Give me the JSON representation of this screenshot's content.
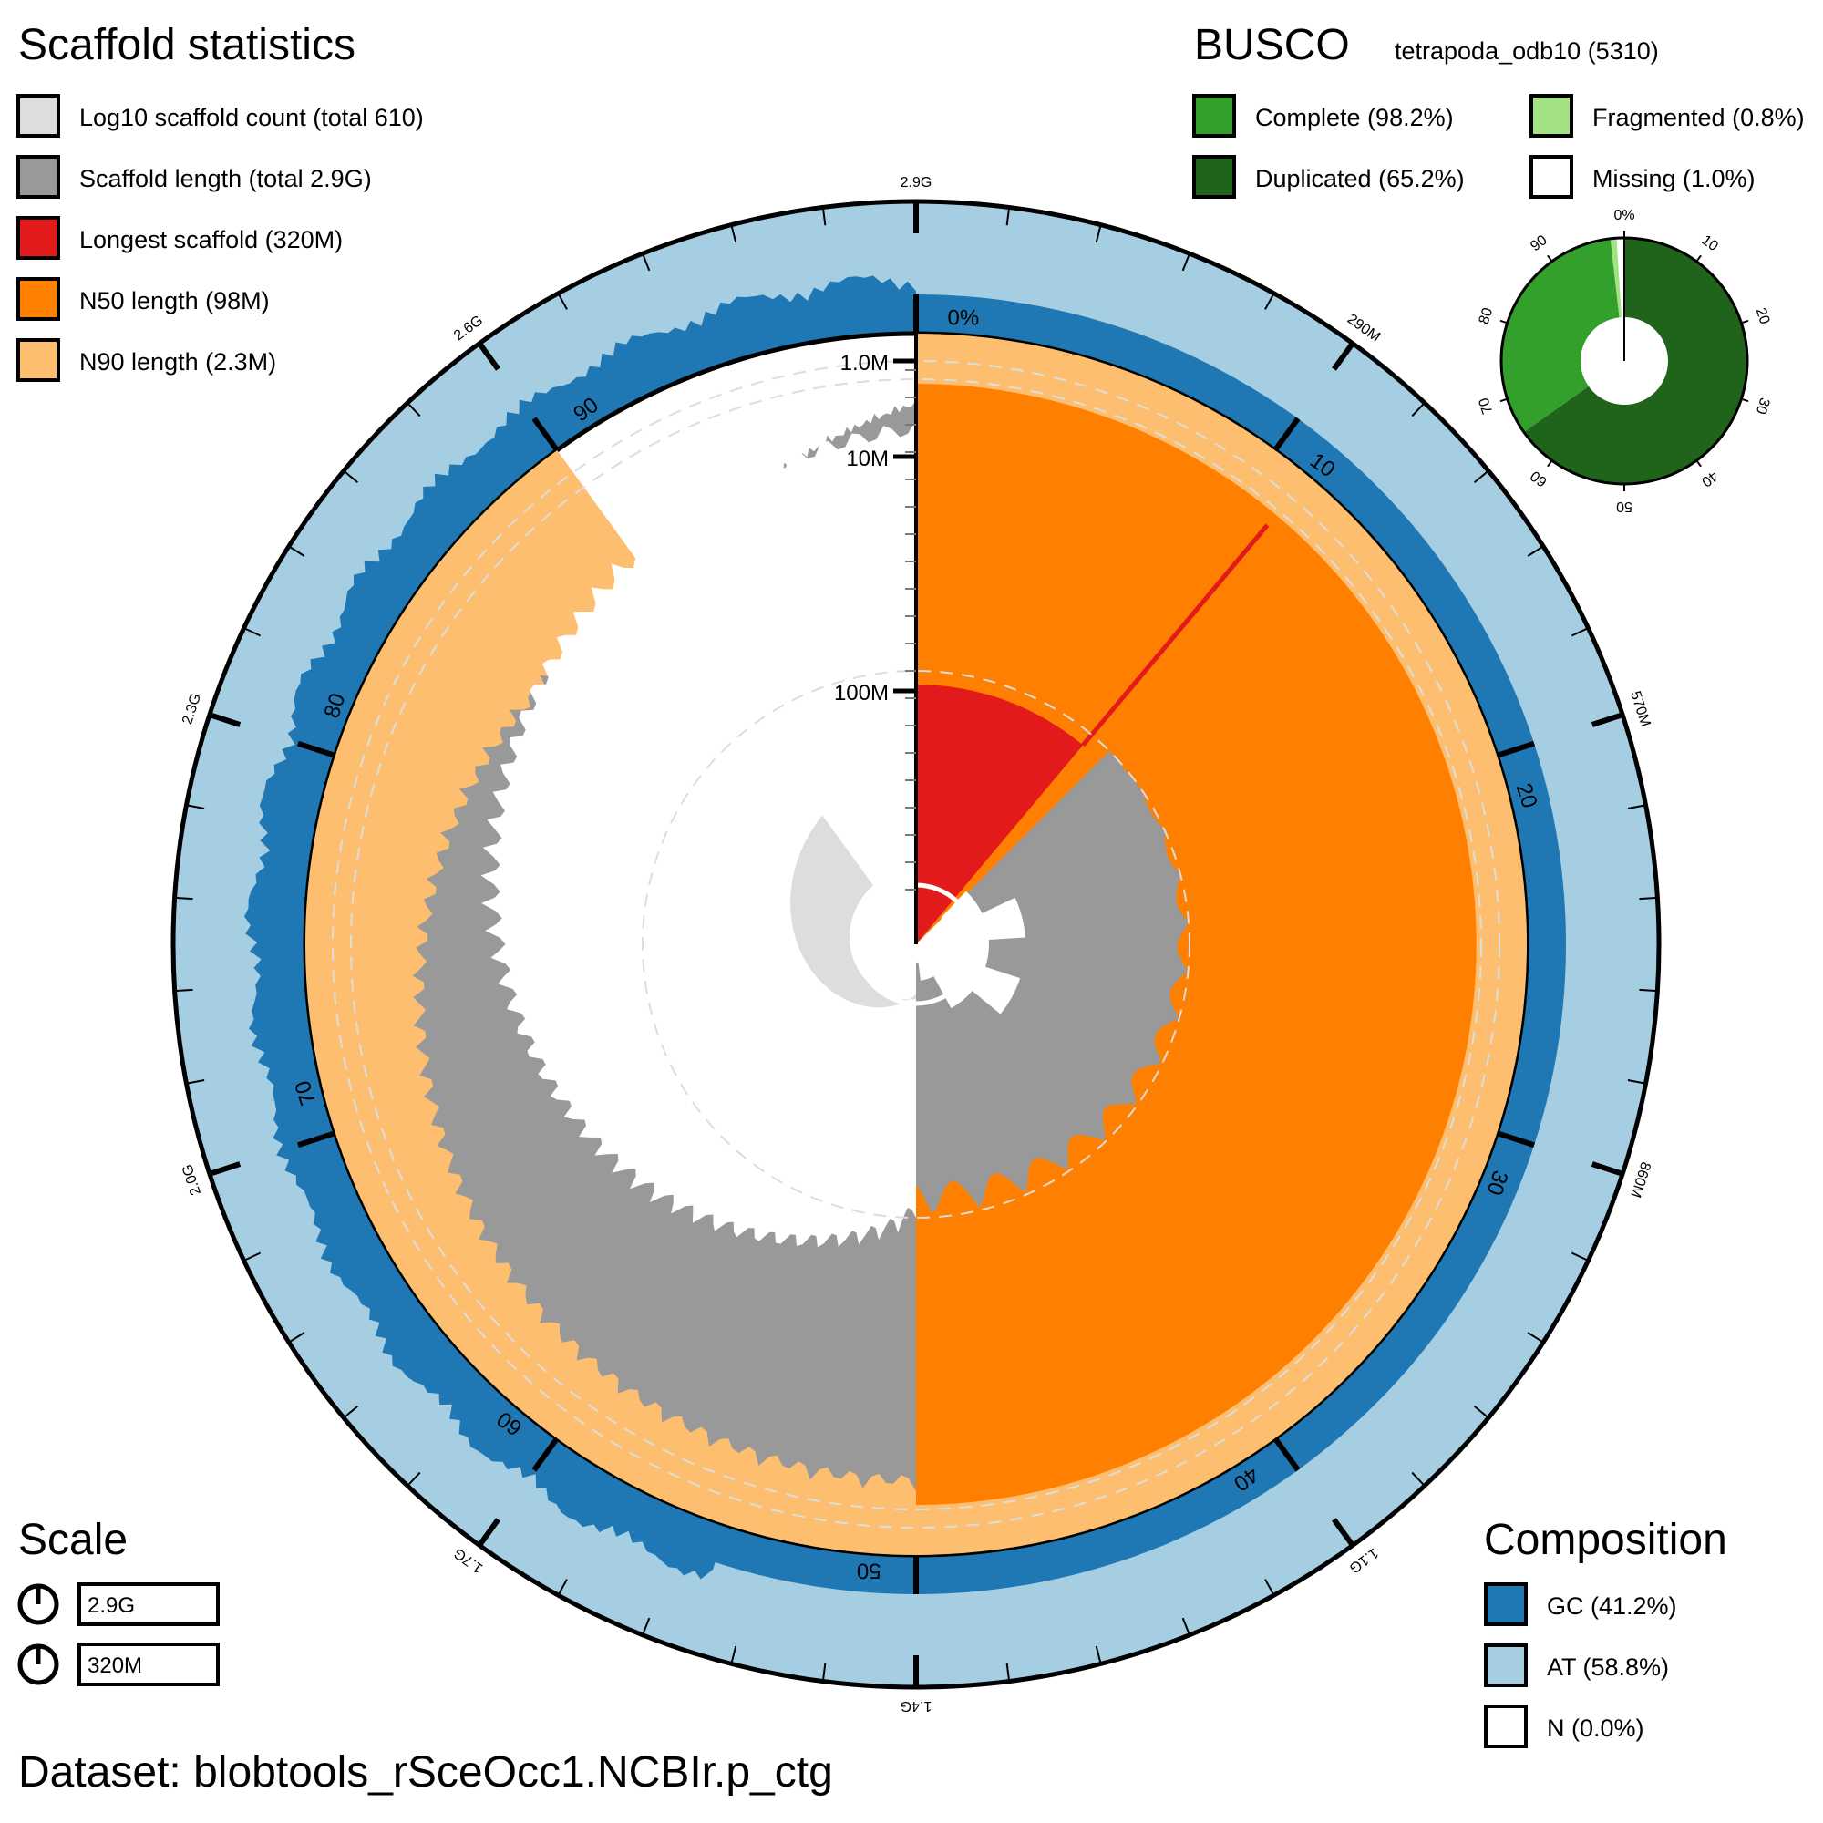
{
  "scaffold_stats": {
    "title": "Scaffold statistics",
    "legend": [
      {
        "label": "Log10 scaffold count (total 610)",
        "color": "#dddddd"
      },
      {
        "label": "Scaffold length (total 2.9G)",
        "color": "#999999"
      },
      {
        "label": "Longest scaffold (320M)",
        "color": "#e31a1c"
      },
      {
        "label": "N50 length (98M)",
        "color": "#ff7f00"
      },
      {
        "label": "N90 length (2.3M)",
        "color": "#fdbf6f"
      }
    ]
  },
  "busco": {
    "title": "BUSCO",
    "lineage": "tetrapoda_odb10 (5310)",
    "legend": [
      {
        "label": "Complete (98.2%)",
        "color": "#33a02c"
      },
      {
        "label": "Fragmented (0.8%)",
        "color": "#a3e283"
      },
      {
        "label": "Duplicated (65.2%)",
        "color": "#20641c"
      },
      {
        "label": "Missing (1.0%)",
        "color": "#ffffff"
      }
    ],
    "ticks": [
      "0%",
      "10",
      "20",
      "30",
      "40",
      "50",
      "60",
      "70",
      "80",
      "90"
    ]
  },
  "scale": {
    "title": "Scale",
    "items": [
      "2.9G",
      "320M"
    ]
  },
  "composition": {
    "title": "Composition",
    "legend": [
      {
        "label": "GC (41.2%)",
        "color": "#1f78b4"
      },
      {
        "label": "AT (58.8%)",
        "color": "#a6cee3"
      },
      {
        "label": "N (0.0%)",
        "color": "#ffffff"
      }
    ]
  },
  "dataset": "Dataset: blobtools_rSceOcc1.NCBIr.p_ctg",
  "chart_data": {
    "type": "snail",
    "total_length": "2.9G",
    "scaffold_count": 610,
    "longest_scaffold": "320M",
    "n50": "98M",
    "n90": "2.3M",
    "gc_percent": 41.2,
    "at_percent": 58.8,
    "n_percent": 0.0,
    "busco_complete": 98.2,
    "busco_duplicated": 65.2,
    "busco_fragmented": 0.8,
    "busco_missing": 1.0,
    "percent_ticks": [
      "0%",
      "10",
      "20",
      "30",
      "40",
      "50",
      "60",
      "70",
      "80",
      "90"
    ],
    "length_ticks": [
      "2.9G",
      "290M",
      "570M",
      "860M",
      "1.1G",
      "1.4G",
      "1.7G",
      "2.0G",
      "2.3G",
      "2.6G"
    ],
    "radial_ticks": [
      "1.0M",
      "10M",
      "100M"
    ]
  }
}
